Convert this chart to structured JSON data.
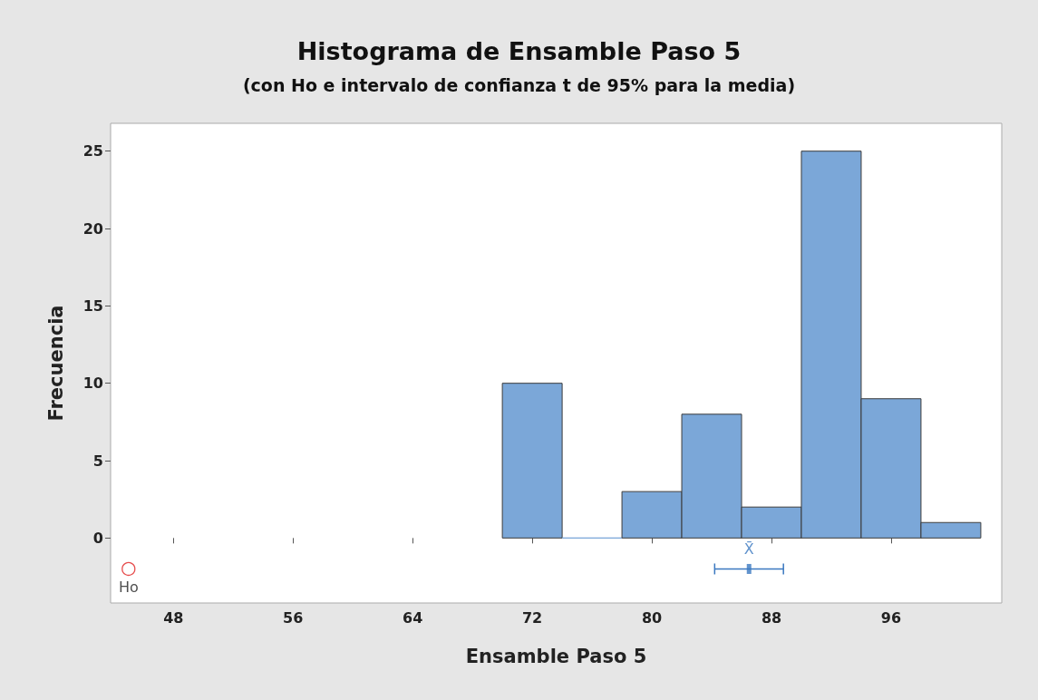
{
  "chart_data": {
    "type": "histogram",
    "title": "Histograma de Ensamble Paso 5",
    "subtitle": "(con Ho e intervalo de confianza t de 95% para la media)",
    "xlabel": "Ensamble Paso 5",
    "ylabel": "Frecuencia",
    "bins": [
      70,
      74,
      78,
      82,
      86,
      90,
      94,
      98,
      102
    ],
    "values": [
      10,
      0,
      3,
      8,
      2,
      25,
      9,
      1
    ],
    "color": "#7ba7d8",
    "series": [
      {
        "type": "scatter",
        "name": "Ho",
        "color": "#e02020",
        "marker": "circle",
        "x": [
          45
        ],
        "values": [
          -2
        ]
      },
      {
        "type": "scatter",
        "name": "X̄",
        "color": "#3a78c0",
        "x": [
          86.5
        ],
        "values": [
          -2
        ],
        "xerrors": [
          [
            84.2,
            88.8
          ]
        ]
      }
    ],
    "xlim": [
      43.8,
      103.4
    ],
    "ylim": [
      -4.2,
      26.8
    ],
    "xticks": [
      48,
      56,
      64,
      72,
      80,
      88,
      96
    ],
    "yticks": [
      0,
      5,
      10,
      15,
      20,
      25
    ],
    "grid": false
  }
}
